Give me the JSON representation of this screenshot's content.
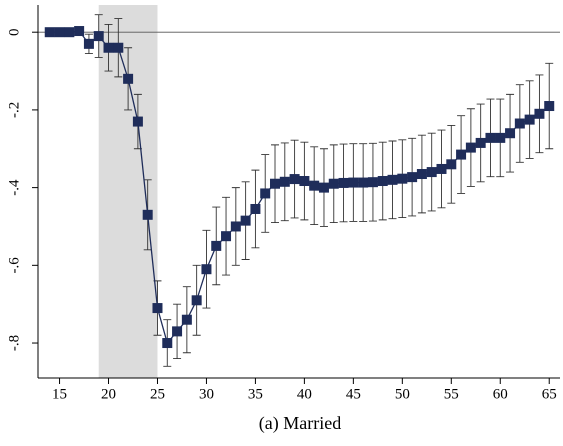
{
  "chart_data": {
    "type": "line_errorbar",
    "caption": "(a) Married",
    "x": [
      14,
      15,
      16,
      17,
      18,
      19,
      20,
      21,
      22,
      23,
      24,
      25,
      26,
      27,
      28,
      29,
      30,
      31,
      32,
      33,
      34,
      35,
      36,
      37,
      38,
      39,
      40,
      41,
      42,
      43,
      44,
      45,
      46,
      47,
      48,
      49,
      50,
      51,
      52,
      53,
      54,
      55,
      56,
      57,
      58,
      59,
      60,
      61,
      62,
      63,
      64,
      65
    ],
    "values": [
      0,
      0,
      0,
      0.003,
      -0.03,
      -0.01,
      -0.04,
      -0.04,
      -0.12,
      -0.23,
      -0.47,
      -0.71,
      -0.8,
      -0.77,
      -0.74,
      -0.69,
      -0.61,
      -0.55,
      -0.525,
      -0.5,
      -0.485,
      -0.455,
      -0.415,
      -0.39,
      -0.385,
      -0.378,
      -0.383,
      -0.395,
      -0.4,
      -0.39,
      -0.388,
      -0.387,
      -0.387,
      -0.386,
      -0.383,
      -0.38,
      -0.377,
      -0.373,
      -0.365,
      -0.36,
      -0.352,
      -0.34,
      -0.315,
      -0.297,
      -0.285,
      -0.272,
      -0.272,
      -0.26,
      -0.235,
      -0.225,
      -0.21,
      -0.19
    ],
    "errors": [
      0,
      0,
      0,
      0.01,
      0.025,
      0.055,
      0.06,
      0.075,
      0.08,
      0.07,
      0.09,
      0.07,
      0.06,
      0.07,
      0.085,
      0.09,
      0.1,
      0.1,
      0.1,
      0.1,
      0.1,
      0.1,
      0.1,
      0.1,
      0.1,
      0.1,
      0.1,
      0.1,
      0.1,
      0.1,
      0.1,
      0.1,
      0.1,
      0.1,
      0.1,
      0.1,
      0.1,
      0.1,
      0.1,
      0.1,
      0.1,
      0.1,
      0.1,
      0.1,
      0.1,
      0.1,
      0.1,
      0.1,
      0.1,
      0.1,
      0.1,
      0.11
    ],
    "color": "#1f2d5a",
    "xlim": [
      12.8,
      66.1
    ],
    "ylim": [
      -0.89,
      0.07
    ],
    "xticks": [
      15,
      20,
      25,
      30,
      35,
      40,
      45,
      50,
      55,
      60,
      65
    ],
    "yticks": [
      0,
      {
        "value": -0.2,
        "label": "-.2"
      },
      {
        "value": -0.4,
        "label": "-.4"
      },
      {
        "value": -0.6,
        "label": "-.6"
      },
      {
        "value": -0.8,
        "label": "-.8"
      }
    ],
    "shade": [
      19,
      25
    ],
    "hline": 0
  }
}
